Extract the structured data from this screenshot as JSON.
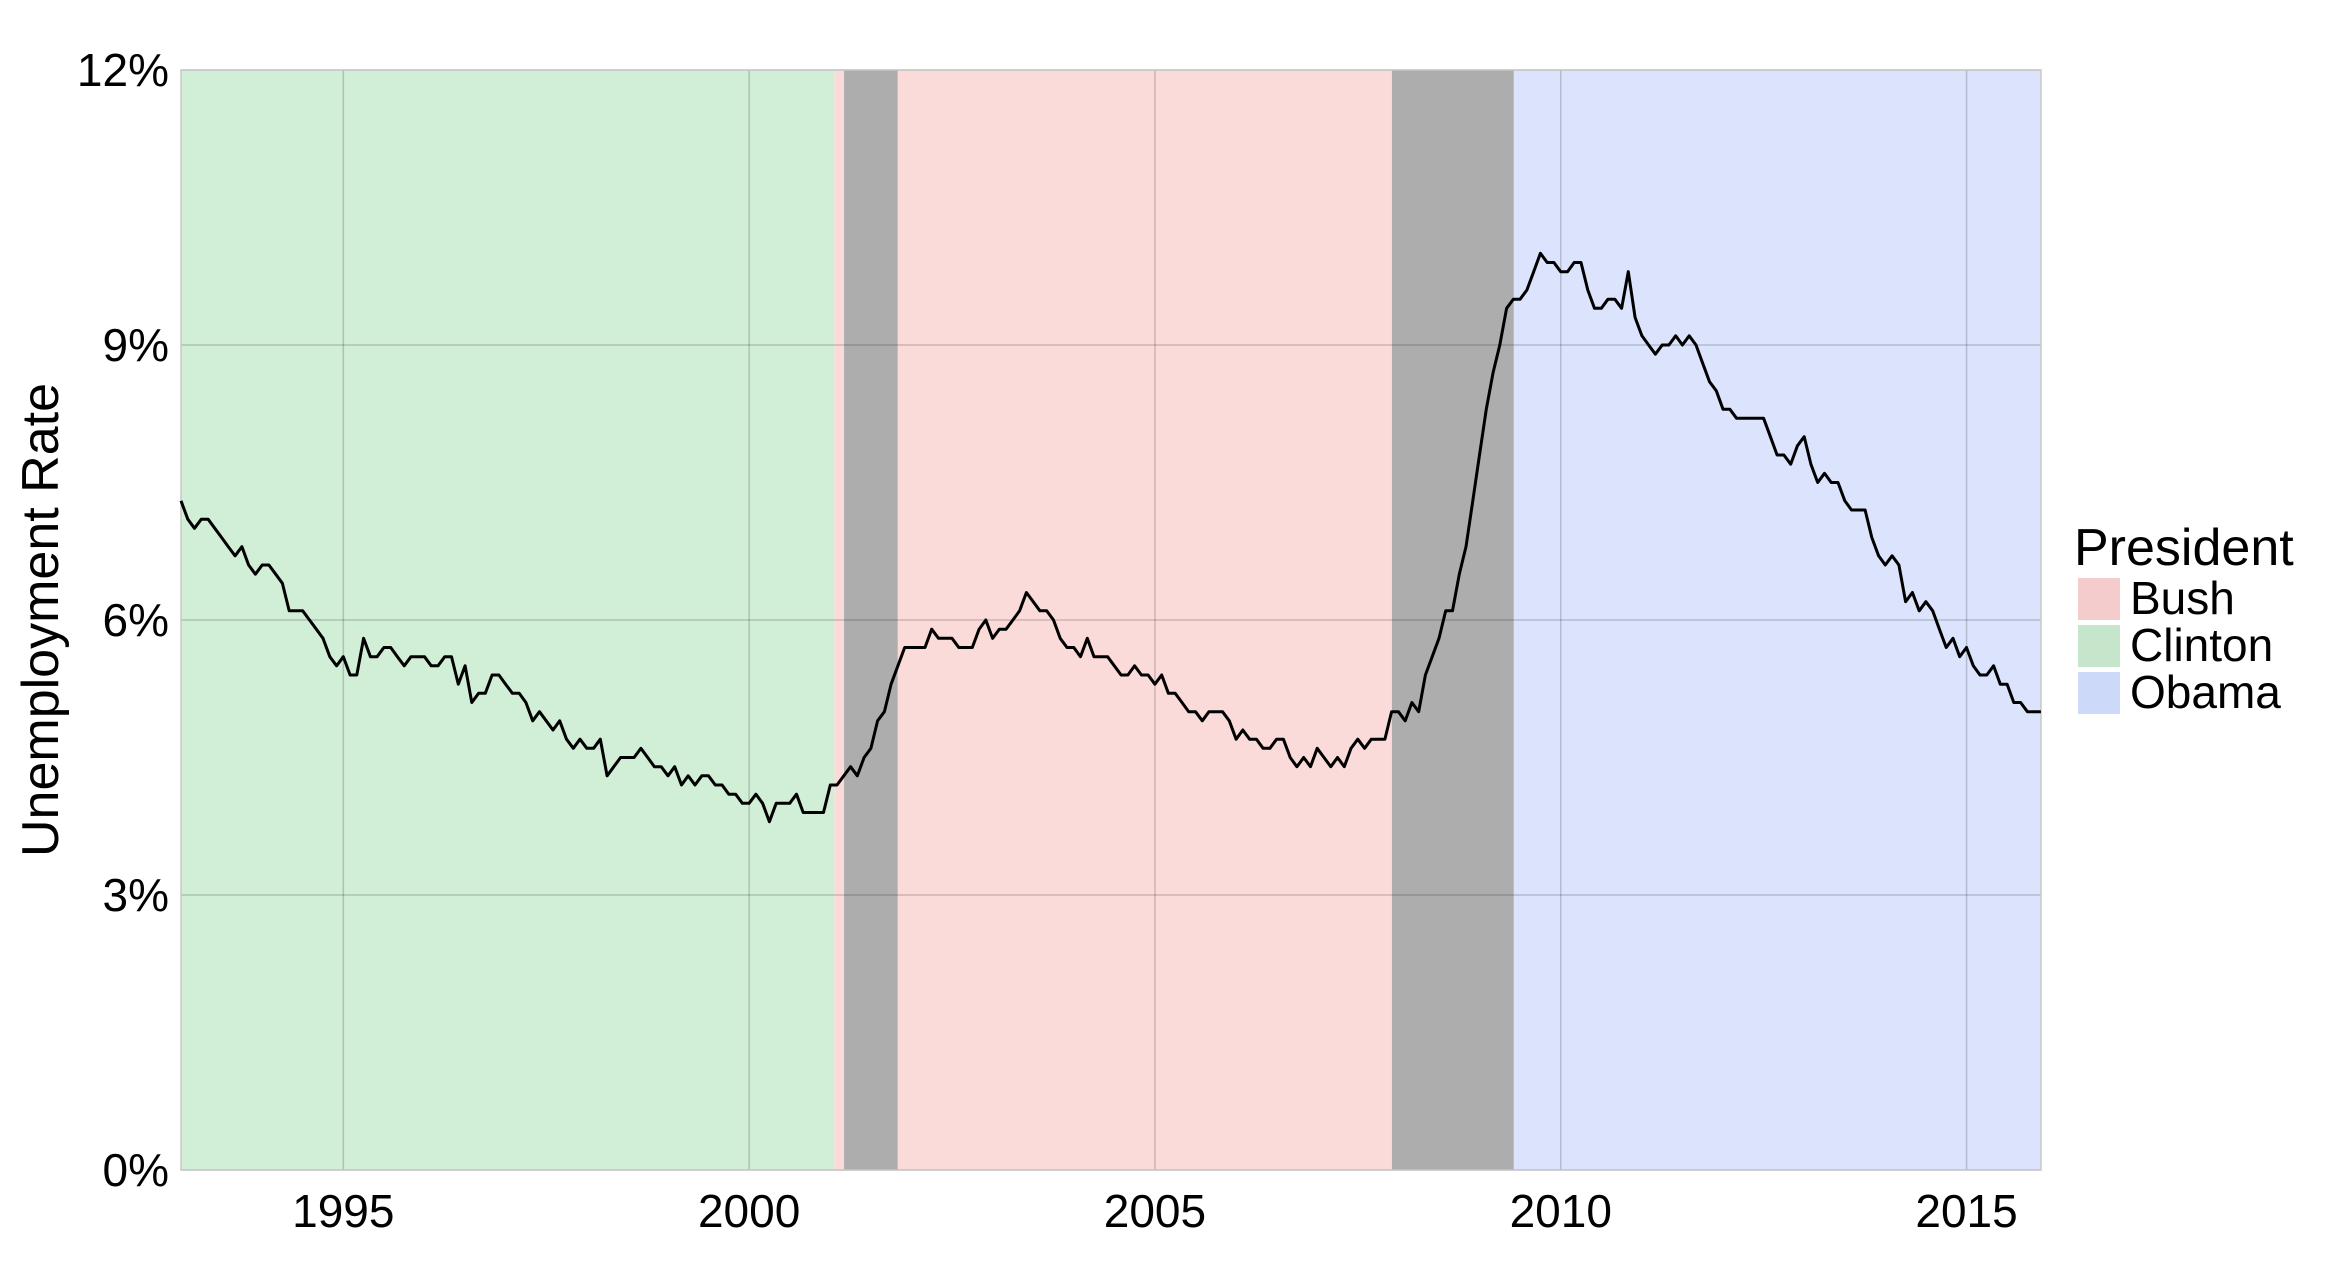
{
  "chart_data": {
    "type": "line",
    "title": "",
    "xlabel": "",
    "ylabel": "Unemployment Rate",
    "xlim": [
      1993.0,
      2015.917
    ],
    "ylim": [
      0,
      12
    ],
    "x_ticks": [
      {
        "value": 1995,
        "label": "1995"
      },
      {
        "value": 2000,
        "label": "2000"
      },
      {
        "value": 2005,
        "label": "2005"
      },
      {
        "value": 2010,
        "label": "2010"
      },
      {
        "value": 2015,
        "label": "2015"
      }
    ],
    "y_ticks": [
      {
        "value": 0,
        "label": "0%"
      },
      {
        "value": 3,
        "label": "3%"
      },
      {
        "value": 6,
        "label": "6%"
      },
      {
        "value": 9,
        "label": "9%"
      },
      {
        "value": 12,
        "label": "12%"
      }
    ],
    "grid": true,
    "legend": {
      "title": "President",
      "position": "right",
      "entries": [
        {
          "name": "Bush",
          "color": "#f4cccc"
        },
        {
          "name": "Clinton",
          "color": "#c6e6cc"
        },
        {
          "name": "Obama",
          "color": "#ccd9f8"
        }
      ]
    },
    "presidencies": [
      {
        "name": "Clinton",
        "start": 1993.0,
        "end": 2001.05,
        "color": "#d1eed7"
      },
      {
        "name": "Bush",
        "start": 2001.05,
        "end": 2009.05,
        "color": "#fadbd9"
      },
      {
        "name": "Obama",
        "start": 2009.05,
        "end": 2015.917,
        "color": "#dbe4fc"
      }
    ],
    "recessions": [
      {
        "start": 2001.17,
        "end": 2001.83,
        "color": "#adadad"
      },
      {
        "start": 2007.92,
        "end": 2009.42,
        "color": "#adadad"
      }
    ],
    "series": [
      {
        "color": "#000000",
        "start": 1993.0,
        "step": 0.08333,
        "values": [
          7.3,
          7.1,
          7.0,
          7.1,
          7.1,
          7.0,
          6.9,
          6.8,
          6.7,
          6.8,
          6.6,
          6.5,
          6.6,
          6.6,
          6.5,
          6.4,
          6.1,
          6.1,
          6.1,
          6.0,
          5.9,
          5.8,
          5.6,
          5.5,
          5.6,
          5.4,
          5.4,
          5.8,
          5.6,
          5.6,
          5.7,
          5.7,
          5.6,
          5.5,
          5.6,
          5.6,
          5.6,
          5.5,
          5.5,
          5.6,
          5.6,
          5.3,
          5.5,
          5.1,
          5.2,
          5.2,
          5.4,
          5.4,
          5.3,
          5.2,
          5.2,
          5.1,
          4.9,
          5.0,
          4.9,
          4.8,
          4.9,
          4.7,
          4.6,
          4.7,
          4.6,
          4.6,
          4.7,
          4.3,
          4.4,
          4.5,
          4.5,
          4.5,
          4.6,
          4.5,
          4.4,
          4.4,
          4.3,
          4.4,
          4.2,
          4.3,
          4.2,
          4.3,
          4.3,
          4.2,
          4.2,
          4.1,
          4.1,
          4.0,
          4.0,
          4.1,
          4.0,
          3.8,
          4.0,
          4.0,
          4.0,
          4.1,
          3.9,
          3.9,
          3.9,
          3.9,
          4.2,
          4.2,
          4.3,
          4.4,
          4.3,
          4.5,
          4.6,
          4.9,
          5.0,
          5.3,
          5.5,
          5.7,
          5.7,
          5.7,
          5.7,
          5.9,
          5.8,
          5.8,
          5.8,
          5.7,
          5.7,
          5.7,
          5.9,
          6.0,
          5.8,
          5.9,
          5.9,
          6.0,
          6.1,
          6.3,
          6.2,
          6.1,
          6.1,
          6.0,
          5.8,
          5.7,
          5.7,
          5.6,
          5.8,
          5.6,
          5.6,
          5.6,
          5.5,
          5.4,
          5.4,
          5.5,
          5.4,
          5.4,
          5.3,
          5.4,
          5.2,
          5.2,
          5.1,
          5.0,
          5.0,
          4.9,
          5.0,
          5.0,
          5.0,
          4.9,
          4.7,
          4.8,
          4.7,
          4.7,
          4.6,
          4.6,
          4.7,
          4.7,
          4.5,
          4.4,
          4.5,
          4.4,
          4.6,
          4.5,
          4.4,
          4.5,
          4.4,
          4.6,
          4.7,
          4.6,
          4.7,
          4.7,
          4.7,
          5.0,
          5.0,
          4.9,
          5.1,
          5.0,
          5.4,
          5.6,
          5.8,
          6.1,
          6.1,
          6.5,
          6.8,
          7.3,
          7.8,
          8.3,
          8.7,
          9.0,
          9.4,
          9.5,
          9.5,
          9.6,
          9.8,
          10.0,
          9.9,
          9.9,
          9.8,
          9.8,
          9.9,
          9.9,
          9.6,
          9.4,
          9.4,
          9.5,
          9.5,
          9.4,
          9.8,
          9.3,
          9.1,
          9.0,
          8.9,
          9.0,
          9.0,
          9.1,
          9.0,
          9.1,
          9.0,
          8.8,
          8.6,
          8.5,
          8.3,
          8.3,
          8.2,
          8.2,
          8.2,
          8.2,
          8.2,
          8.0,
          7.8,
          7.8,
          7.7,
          7.9,
          8.0,
          7.7,
          7.5,
          7.6,
          7.5,
          7.5,
          7.3,
          7.2,
          7.2,
          7.2,
          6.9,
          6.7,
          6.6,
          6.7,
          6.6,
          6.2,
          6.3,
          6.1,
          6.2,
          6.1,
          5.9,
          5.7,
          5.8,
          5.6,
          5.7,
          5.5,
          5.4,
          5.4,
          5.5,
          5.3,
          5.3,
          5.1,
          5.1,
          5.0,
          5.0,
          5.0
        ]
      }
    ]
  }
}
